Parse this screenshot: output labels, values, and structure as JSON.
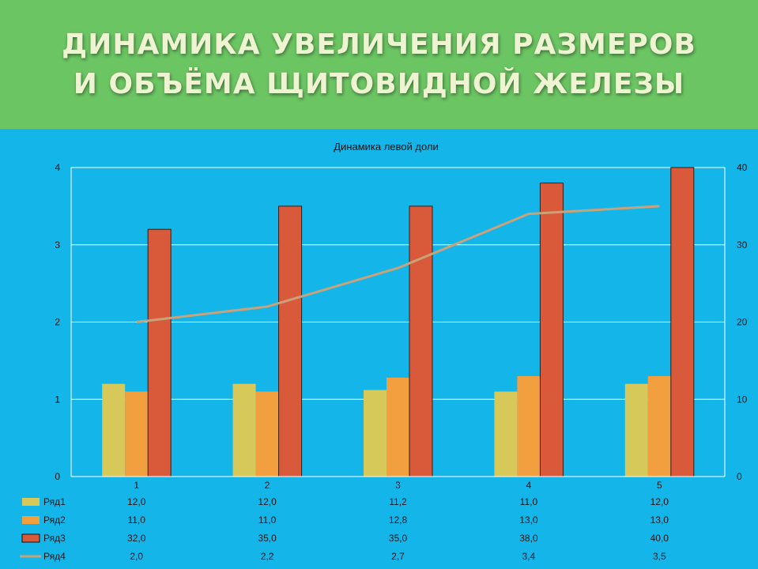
{
  "header": {
    "title_line1": "ДИНАМИКА УВЕЛИЧЕНИЯ РАЗМЕРОВ",
    "title_line2": "И ОБЪЁМА ЩИТОВИДНОЙ ЖЕЛЕЗЫ"
  },
  "colors": {
    "background": "#14b6ea",
    "header": "#6cc563",
    "series1": "#d6c95a",
    "series2": "#f2a03f",
    "series3": "#d95a3b",
    "series4": "#c9a27a"
  },
  "chart_data": {
    "type": "bar",
    "title": "Динамика левой доли",
    "categories": [
      "1",
      "2",
      "3",
      "4",
      "5"
    ],
    "series": [
      {
        "name": "Ряд1",
        "values": [
          12.0,
          12.0,
          11.2,
          11.0,
          12.0
        ],
        "axis": "right",
        "type": "bar",
        "labels": [
          "12,0",
          "12,0",
          "11,2",
          "11,0",
          "12,0"
        ]
      },
      {
        "name": "Ряд2",
        "values": [
          11.0,
          11.0,
          12.8,
          13.0,
          13.0
        ],
        "axis": "right",
        "type": "bar",
        "labels": [
          "11,0",
          "11,0",
          "12,8",
          "13,0",
          "13,0"
        ]
      },
      {
        "name": "Ряд3",
        "values": [
          32.0,
          35.0,
          35.0,
          38.0,
          40.0
        ],
        "axis": "right",
        "type": "bar",
        "labels": [
          "32,0",
          "35,0",
          "35,0",
          "38,0",
          "40,0"
        ]
      },
      {
        "name": "Ряд4",
        "values": [
          2.0,
          2.2,
          2.7,
          3.4,
          3.5
        ],
        "axis": "left",
        "type": "line",
        "labels": [
          "2,0",
          "2,2",
          "2,7",
          "3,4",
          "3,5"
        ]
      }
    ],
    "left_axis": {
      "range": [
        0,
        4
      ],
      "ticks": [
        "0",
        "1",
        "2",
        "3",
        "4"
      ]
    },
    "right_axis": {
      "range": [
        0,
        40
      ],
      "ticks": [
        "0",
        "10",
        "20",
        "30",
        "40"
      ]
    },
    "grid": true,
    "legend": "data-table"
  }
}
